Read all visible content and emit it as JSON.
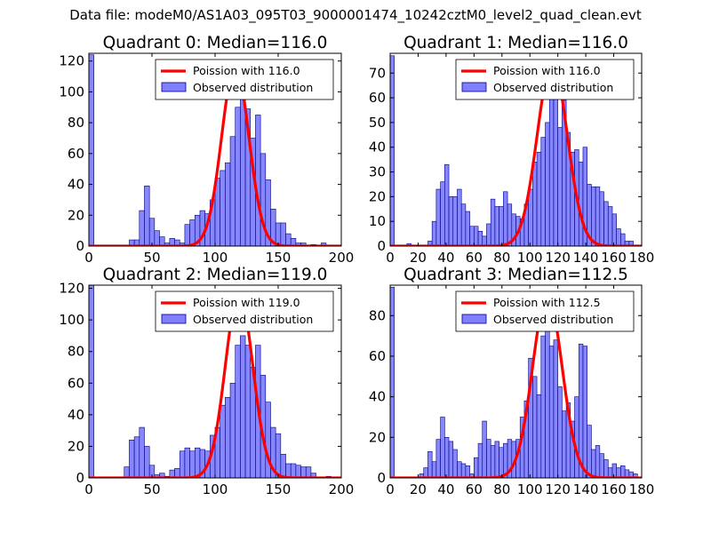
{
  "figure": {
    "suptitle": "Data file: modeM0/AS1A03_095T03_9000001474_10242cztM0_level2_quad_clean.evt"
  },
  "colors": {
    "poisson_line": "#ff0000",
    "hist_fill": "#7f7fff",
    "hist_edge": "#000080"
  },
  "chart_data": [
    {
      "type": "bar",
      "title": "Quadrant 0: Median=116.0",
      "median": 116.0,
      "xlim": [
        0,
        200
      ],
      "ylim": [
        0,
        125
      ],
      "xticks": [
        0,
        50,
        100,
        150,
        200
      ],
      "yticks": [
        0,
        20,
        40,
        60,
        80,
        100,
        120
      ],
      "bin_width": 4,
      "legend": {
        "placement": "top-right",
        "line_label": "Poission with 116.0",
        "bar_label": "Observed distribution"
      },
      "bins": [
        [
          0,
          124
        ],
        [
          32,
          4
        ],
        [
          36,
          4
        ],
        [
          40,
          23
        ],
        [
          44,
          39
        ],
        [
          48,
          18
        ],
        [
          52,
          10
        ],
        [
          56,
          6
        ],
        [
          60,
          2
        ],
        [
          64,
          5
        ],
        [
          68,
          4
        ],
        [
          72,
          2
        ],
        [
          76,
          14
        ],
        [
          80,
          17
        ],
        [
          84,
          20
        ],
        [
          88,
          23
        ],
        [
          92,
          21
        ],
        [
          96,
          30
        ],
        [
          100,
          44
        ],
        [
          104,
          49
        ],
        [
          108,
          54
        ],
        [
          112,
          71
        ],
        [
          116,
          90
        ],
        [
          120,
          101
        ],
        [
          124,
          89
        ],
        [
          128,
          70
        ],
        [
          132,
          85
        ],
        [
          136,
          60
        ],
        [
          140,
          43
        ],
        [
          144,
          24
        ],
        [
          148,
          15
        ],
        [
          152,
          15
        ],
        [
          156,
          8
        ],
        [
          160,
          5
        ],
        [
          164,
          2
        ],
        [
          168,
          2
        ],
        [
          176,
          1
        ],
        [
          184,
          2
        ]
      ],
      "poisson_curve": {
        "peak": 116,
        "amplitude": 117,
        "sigma": 10.8
      }
    },
    {
      "type": "bar",
      "title": "Quadrant 1: Median=116.0",
      "median": 116.0,
      "xlim": [
        0,
        180
      ],
      "ylim": [
        0,
        78
      ],
      "xticks": [
        0,
        20,
        40,
        60,
        80,
        100,
        120,
        140,
        160,
        180
      ],
      "yticks": [
        0,
        10,
        20,
        30,
        40,
        50,
        60,
        70
      ],
      "bin_width": 3,
      "legend": {
        "placement": "top-right",
        "line_label": "Poission with 116.0",
        "bar_label": "Observed distribution"
      },
      "bins": [
        [
          0,
          77
        ],
        [
          12,
          1
        ],
        [
          27,
          2
        ],
        [
          30,
          10
        ],
        [
          33,
          23
        ],
        [
          36,
          26
        ],
        [
          39,
          33
        ],
        [
          42,
          20
        ],
        [
          45,
          20
        ],
        [
          48,
          23
        ],
        [
          51,
          17
        ],
        [
          54,
          14
        ],
        [
          57,
          8
        ],
        [
          60,
          8
        ],
        [
          63,
          6
        ],
        [
          66,
          4
        ],
        [
          69,
          9
        ],
        [
          72,
          19
        ],
        [
          75,
          16
        ],
        [
          78,
          16
        ],
        [
          81,
          22
        ],
        [
          84,
          17
        ],
        [
          87,
          13
        ],
        [
          90,
          12
        ],
        [
          93,
          11
        ],
        [
          96,
          17
        ],
        [
          99,
          23
        ],
        [
          102,
          34
        ],
        [
          105,
          38
        ],
        [
          108,
          44
        ],
        [
          111,
          50
        ],
        [
          114,
          74
        ],
        [
          117,
          65
        ],
        [
          120,
          48
        ],
        [
          123,
          59
        ],
        [
          126,
          46
        ],
        [
          129,
          38
        ],
        [
          132,
          39
        ],
        [
          135,
          34
        ],
        [
          138,
          40
        ],
        [
          141,
          25
        ],
        [
          144,
          24
        ],
        [
          147,
          24
        ],
        [
          150,
          22
        ],
        [
          153,
          18
        ],
        [
          156,
          16
        ],
        [
          159,
          13
        ],
        [
          162,
          7
        ],
        [
          165,
          5
        ],
        [
          168,
          2
        ],
        [
          171,
          2
        ]
      ],
      "poisson_curve": {
        "peak": 116,
        "amplitude": 74,
        "sigma": 10.8
      }
    },
    {
      "type": "bar",
      "title": "Quadrant 2: Median=119.0",
      "median": 119.0,
      "xlim": [
        0,
        200
      ],
      "ylim": [
        0,
        122
      ],
      "xticks": [
        0,
        50,
        100,
        150,
        200
      ],
      "yticks": [
        0,
        20,
        40,
        60,
        80,
        100,
        120
      ],
      "bin_width": 4,
      "legend": {
        "placement": "top-right",
        "line_label": "Poission with 119.0",
        "bar_label": "Observed distribution"
      },
      "bins": [
        [
          0,
          122
        ],
        [
          28,
          7
        ],
        [
          32,
          24
        ],
        [
          36,
          26
        ],
        [
          40,
          32
        ],
        [
          44,
          20
        ],
        [
          48,
          8
        ],
        [
          52,
          2
        ],
        [
          56,
          3
        ],
        [
          60,
          1
        ],
        [
          64,
          5
        ],
        [
          68,
          6
        ],
        [
          72,
          17
        ],
        [
          76,
          19
        ],
        [
          80,
          17
        ],
        [
          84,
          19
        ],
        [
          88,
          18
        ],
        [
          92,
          17
        ],
        [
          96,
          27
        ],
        [
          100,
          32
        ],
        [
          104,
          46
        ],
        [
          108,
          51
        ],
        [
          112,
          60
        ],
        [
          116,
          84
        ],
        [
          120,
          90
        ],
        [
          124,
          84
        ],
        [
          128,
          70
        ],
        [
          132,
          84
        ],
        [
          136,
          65
        ],
        [
          140,
          48
        ],
        [
          144,
          32
        ],
        [
          148,
          28
        ],
        [
          152,
          15
        ],
        [
          156,
          9
        ],
        [
          160,
          9
        ],
        [
          164,
          8
        ],
        [
          168,
          7
        ],
        [
          172,
          7
        ],
        [
          176,
          3
        ],
        [
          188,
          1
        ]
      ],
      "poisson_curve": {
        "peak": 119,
        "amplitude": 117,
        "sigma": 10.9
      }
    },
    {
      "type": "bar",
      "title": "Quadrant 3: Median=112.5",
      "median": 112.5,
      "xlim": [
        0,
        180
      ],
      "ylim": [
        0,
        95
      ],
      "xticks": [
        0,
        20,
        40,
        60,
        80,
        100,
        120,
        140,
        160,
        180
      ],
      "yticks": [
        0,
        20,
        40,
        60,
        80
      ],
      "bin_width": 3,
      "legend": {
        "placement": "top-right",
        "line_label": "Poission with 112.5",
        "bar_label": "Observed distribution"
      },
      "bins": [
        [
          0,
          94
        ],
        [
          21,
          2
        ],
        [
          24,
          5
        ],
        [
          27,
          13
        ],
        [
          30,
          8
        ],
        [
          33,
          19
        ],
        [
          36,
          30
        ],
        [
          39,
          20
        ],
        [
          42,
          18
        ],
        [
          45,
          14
        ],
        [
          48,
          8
        ],
        [
          51,
          7
        ],
        [
          54,
          6
        ],
        [
          57,
          2
        ],
        [
          60,
          10
        ],
        [
          63,
          17
        ],
        [
          66,
          28
        ],
        [
          69,
          19
        ],
        [
          72,
          16
        ],
        [
          75,
          18
        ],
        [
          78,
          15
        ],
        [
          81,
          17
        ],
        [
          84,
          19
        ],
        [
          87,
          18
        ],
        [
          90,
          19
        ],
        [
          93,
          30
        ],
        [
          96,
          38
        ],
        [
          99,
          59
        ],
        [
          102,
          50
        ],
        [
          105,
          41
        ],
        [
          108,
          70
        ],
        [
          111,
          82
        ],
        [
          114,
          65
        ],
        [
          117,
          68
        ],
        [
          120,
          45
        ],
        [
          123,
          33
        ],
        [
          126,
          37
        ],
        [
          129,
          28
        ],
        [
          132,
          40
        ],
        [
          135,
          66
        ],
        [
          138,
          65
        ],
        [
          141,
          26
        ],
        [
          144,
          14
        ],
        [
          147,
          16
        ],
        [
          150,
          12
        ],
        [
          153,
          9
        ],
        [
          156,
          5
        ],
        [
          159,
          7
        ],
        [
          162,
          5
        ],
        [
          165,
          6
        ],
        [
          168,
          4
        ],
        [
          171,
          3
        ],
        [
          174,
          2
        ]
      ],
      "poisson_curve": {
        "peak": 112.5,
        "amplitude": 90,
        "sigma": 10.6
      }
    }
  ]
}
